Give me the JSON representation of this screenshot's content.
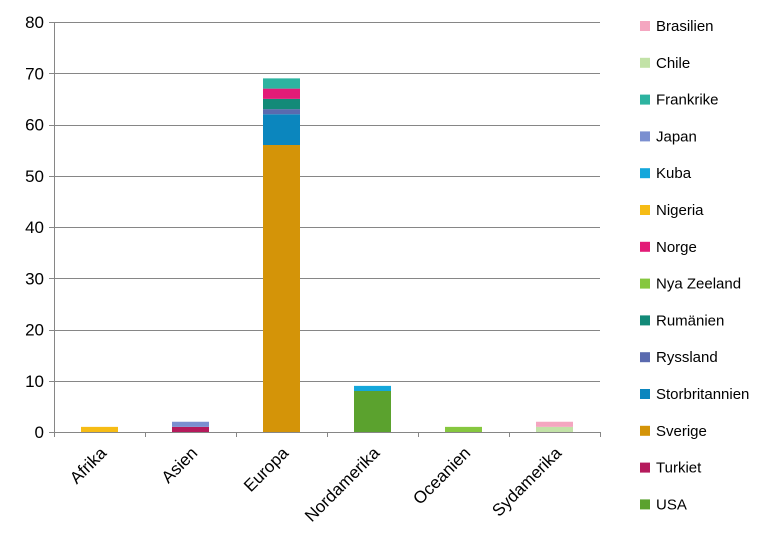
{
  "chart_data": {
    "type": "bar",
    "stacked": true,
    "categories": [
      "Afrika",
      "Asien",
      "Europa",
      "Nordamerika",
      "Oceanien",
      "Sydamerika"
    ],
    "ylim": [
      0,
      80
    ],
    "yticks": [
      0,
      10,
      20,
      30,
      40,
      50,
      60,
      70,
      80
    ],
    "grid": true,
    "legend_position": "right",
    "series": [
      {
        "name": "Brasilien",
        "color": "#F4A6C0",
        "values": [
          0,
          0,
          0,
          0,
          0,
          1
        ]
      },
      {
        "name": "Chile",
        "color": "#C2E2A7",
        "values": [
          0,
          0,
          0,
          0,
          0,
          1
        ]
      },
      {
        "name": "Frankrike",
        "color": "#2DB3A0",
        "values": [
          0,
          0,
          2,
          0,
          0,
          0
        ]
      },
      {
        "name": "Japan",
        "color": "#7B8FD0",
        "values": [
          0,
          1,
          0,
          0,
          0,
          0
        ]
      },
      {
        "name": "Kuba",
        "color": "#14A7DB",
        "values": [
          0,
          0,
          0,
          1,
          0,
          0
        ]
      },
      {
        "name": "Nigeria",
        "color": "#F6BC15",
        "values": [
          1,
          0,
          0,
          0,
          0,
          0
        ]
      },
      {
        "name": "Norge",
        "color": "#E31B77",
        "values": [
          0,
          0,
          2,
          0,
          0,
          0
        ]
      },
      {
        "name": "Nya Zeeland",
        "color": "#86C73F",
        "values": [
          0,
          0,
          0,
          0,
          1,
          0
        ]
      },
      {
        "name": "Rumänien",
        "color": "#138A78",
        "values": [
          0,
          0,
          2,
          0,
          0,
          0
        ]
      },
      {
        "name": "Ryssland",
        "color": "#5A6AAF",
        "values": [
          0,
          0,
          1,
          0,
          0,
          0
        ]
      },
      {
        "name": "Storbritannien",
        "color": "#0B86BE",
        "values": [
          0,
          0,
          6,
          0,
          0,
          0
        ]
      },
      {
        "name": "Sverige",
        "color": "#D49408",
        "values": [
          0,
          0,
          56,
          0,
          0,
          0
        ]
      },
      {
        "name": "Turkiet",
        "color": "#B51A5C",
        "values": [
          0,
          1,
          0,
          0,
          0,
          0
        ]
      },
      {
        "name": "USA",
        "color": "#5BA22E",
        "values": [
          0,
          0,
          0,
          8,
          0,
          0
        ]
      }
    ],
    "stack_order": [
      "USA",
      "Turkiet",
      "Sverige",
      "Storbritannien",
      "Ryssland",
      "Rumänien",
      "Nya Zeeland",
      "Norge",
      "Nigeria",
      "Kuba",
      "Japan",
      "Frankrike",
      "Chile",
      "Brasilien"
    ],
    "gridline_color": "#868686"
  }
}
